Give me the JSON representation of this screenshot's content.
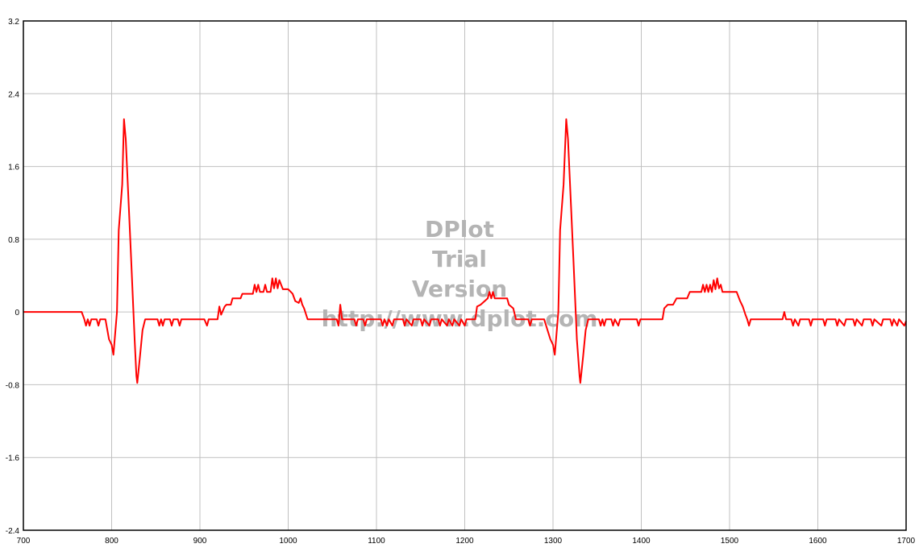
{
  "chart_data": {
    "type": "line",
    "title": "",
    "xlabel": "",
    "ylabel": "",
    "xlim": [
      700,
      1700
    ],
    "ylim": [
      -2.4,
      3.2
    ],
    "grid": true,
    "x_ticks": [
      "700",
      "800",
      "900",
      "1000",
      "1100",
      "1200",
      "1300",
      "1400",
      "1500",
      "1600",
      "1700"
    ],
    "y_ticks": [
      "3.2",
      "2.4",
      "1.6",
      "0.8",
      "0",
      "-0.8",
      "-1.6",
      "-2.4"
    ],
    "series": [
      {
        "color": "#ff0000",
        "points": [
          [
            700,
            0
          ],
          [
            766,
            0
          ],
          [
            769,
            -0.08
          ],
          [
            771,
            -0.15
          ],
          [
            773,
            -0.08
          ],
          [
            775,
            -0.15
          ],
          [
            777,
            -0.08
          ],
          [
            783,
            -0.08
          ],
          [
            785,
            -0.15
          ],
          [
            787,
            -0.08
          ],
          [
            793,
            -0.08
          ],
          [
            797,
            -0.3
          ],
          [
            800,
            -0.36
          ],
          [
            802,
            -0.47
          ],
          [
            806,
            0
          ],
          [
            808,
            0.9
          ],
          [
            812,
            1.4
          ],
          [
            814,
            2.12
          ],
          [
            816,
            1.9
          ],
          [
            822,
            0.6
          ],
          [
            826,
            -0.3
          ],
          [
            828,
            -0.7
          ],
          [
            829,
            -0.78
          ],
          [
            832,
            -0.5
          ],
          [
            835,
            -0.2
          ],
          [
            838,
            -0.08
          ],
          [
            852,
            -0.08
          ],
          [
            854,
            -0.15
          ],
          [
            856,
            -0.08
          ],
          [
            858,
            -0.15
          ],
          [
            860,
            -0.08
          ],
          [
            866,
            -0.08
          ],
          [
            868,
            -0.15
          ],
          [
            870,
            -0.08
          ],
          [
            875,
            -0.08
          ],
          [
            877,
            -0.15
          ],
          [
            879,
            -0.08
          ],
          [
            905,
            -0.08
          ],
          [
            908,
            -0.15
          ],
          [
            910,
            -0.08
          ],
          [
            920,
            -0.08
          ],
          [
            922,
            0.06
          ],
          [
            924,
            -0.03
          ],
          [
            928,
            0.06
          ],
          [
            930,
            0.08
          ],
          [
            935,
            0.08
          ],
          [
            937,
            0.15
          ],
          [
            946,
            0.15
          ],
          [
            948,
            0.2
          ],
          [
            960,
            0.2
          ],
          [
            962,
            0.3
          ],
          [
            964,
            0.22
          ],
          [
            966,
            0.3
          ],
          [
            968,
            0.22
          ],
          [
            972,
            0.22
          ],
          [
            974,
            0.3
          ],
          [
            976,
            0.22
          ],
          [
            980,
            0.22
          ],
          [
            982,
            0.37
          ],
          [
            984,
            0.26
          ],
          [
            986,
            0.37
          ],
          [
            988,
            0.26
          ],
          [
            990,
            0.35
          ],
          [
            994,
            0.25
          ],
          [
            1000,
            0.25
          ],
          [
            1005,
            0.2
          ],
          [
            1008,
            0.12
          ],
          [
            1012,
            0.1
          ],
          [
            1014,
            0.15
          ],
          [
            1016,
            0.08
          ],
          [
            1018,
            0.04
          ],
          [
            1022,
            -0.08
          ],
          [
            1055,
            -0.08
          ],
          [
            1057,
            -0.15
          ],
          [
            1059,
            0.08
          ],
          [
            1061,
            -0.08
          ],
          [
            1075,
            -0.08
          ],
          [
            1077,
            -0.15
          ],
          [
            1079,
            -0.08
          ],
          [
            1085,
            -0.08
          ],
          [
            1087,
            -0.15
          ],
          [
            1089,
            -0.08
          ],
          [
            1105,
            -0.08
          ],
          [
            1107,
            -0.15
          ],
          [
            1109,
            -0.08
          ],
          [
            1112,
            -0.15
          ],
          [
            1114,
            -0.08
          ],
          [
            1118,
            -0.15
          ],
          [
            1120,
            -0.08
          ],
          [
            1130,
            -0.08
          ],
          [
            1132,
            -0.15
          ],
          [
            1134,
            -0.08
          ],
          [
            1140,
            -0.15
          ],
          [
            1142,
            -0.08
          ],
          [
            1150,
            -0.08
          ],
          [
            1152,
            -0.15
          ],
          [
            1154,
            -0.08
          ],
          [
            1160,
            -0.15
          ],
          [
            1162,
            -0.08
          ],
          [
            1170,
            -0.08
          ],
          [
            1172,
            -0.15
          ],
          [
            1174,
            -0.08
          ],
          [
            1180,
            -0.15
          ],
          [
            1182,
            -0.08
          ],
          [
            1186,
            -0.15
          ],
          [
            1188,
            -0.08
          ],
          [
            1194,
            -0.15
          ],
          [
            1196,
            -0.08
          ],
          [
            1200,
            -0.15
          ],
          [
            1202,
            -0.08
          ],
          [
            1212,
            -0.08
          ],
          [
            1214,
            0.06
          ],
          [
            1218,
            0.08
          ],
          [
            1226,
            0.15
          ],
          [
            1228,
            0.22
          ],
          [
            1230,
            0.15
          ],
          [
            1232,
            0.22
          ],
          [
            1234,
            0.15
          ],
          [
            1248,
            0.15
          ],
          [
            1250,
            0.08
          ],
          [
            1255,
            0.04
          ],
          [
            1258,
            -0.08
          ],
          [
            1272,
            -0.08
          ],
          [
            1274,
            -0.15
          ],
          [
            1276,
            -0.08
          ],
          [
            1290,
            -0.08
          ],
          [
            1297,
            -0.3
          ],
          [
            1300,
            -0.36
          ],
          [
            1302,
            -0.47
          ],
          [
            1306,
            0
          ],
          [
            1308,
            0.9
          ],
          [
            1312,
            1.4
          ],
          [
            1315,
            2.12
          ],
          [
            1317,
            1.9
          ],
          [
            1323,
            0.6
          ],
          [
            1327,
            -0.3
          ],
          [
            1330,
            -0.7
          ],
          [
            1331,
            -0.78
          ],
          [
            1334,
            -0.5
          ],
          [
            1337,
            -0.2
          ],
          [
            1340,
            -0.08
          ],
          [
            1352,
            -0.08
          ],
          [
            1354,
            -0.15
          ],
          [
            1356,
            -0.08
          ],
          [
            1358,
            -0.15
          ],
          [
            1360,
            -0.08
          ],
          [
            1366,
            -0.08
          ],
          [
            1368,
            -0.15
          ],
          [
            1370,
            -0.08
          ],
          [
            1374,
            -0.15
          ],
          [
            1376,
            -0.08
          ],
          [
            1395,
            -0.08
          ],
          [
            1397,
            -0.15
          ],
          [
            1399,
            -0.08
          ],
          [
            1424,
            -0.08
          ],
          [
            1426,
            0.04
          ],
          [
            1430,
            0.08
          ],
          [
            1436,
            0.08
          ],
          [
            1440,
            0.15
          ],
          [
            1452,
            0.15
          ],
          [
            1455,
            0.22
          ],
          [
            1468,
            0.22
          ],
          [
            1470,
            0.3
          ],
          [
            1472,
            0.22
          ],
          [
            1474,
            0.3
          ],
          [
            1476,
            0.22
          ],
          [
            1478,
            0.3
          ],
          [
            1480,
            0.22
          ],
          [
            1482,
            0.35
          ],
          [
            1484,
            0.25
          ],
          [
            1486,
            0.37
          ],
          [
            1488,
            0.26
          ],
          [
            1490,
            0.3
          ],
          [
            1492,
            0.22
          ],
          [
            1508,
            0.22
          ],
          [
            1512,
            0.12
          ],
          [
            1515,
            0.06
          ],
          [
            1518,
            -0.03
          ],
          [
            1520,
            -0.08
          ],
          [
            1522,
            -0.15
          ],
          [
            1524,
            -0.08
          ],
          [
            1560,
            -0.08
          ],
          [
            1562,
            0.0
          ],
          [
            1564,
            -0.08
          ],
          [
            1570,
            -0.08
          ],
          [
            1572,
            -0.15
          ],
          [
            1574,
            -0.08
          ],
          [
            1578,
            -0.15
          ],
          [
            1580,
            -0.08
          ],
          [
            1590,
            -0.08
          ],
          [
            1592,
            -0.15
          ],
          [
            1594,
            -0.08
          ],
          [
            1606,
            -0.08
          ],
          [
            1608,
            -0.15
          ],
          [
            1610,
            -0.08
          ],
          [
            1620,
            -0.08
          ],
          [
            1622,
            -0.15
          ],
          [
            1624,
            -0.08
          ],
          [
            1630,
            -0.15
          ],
          [
            1632,
            -0.08
          ],
          [
            1640,
            -0.08
          ],
          [
            1642,
            -0.15
          ],
          [
            1644,
            -0.08
          ],
          [
            1650,
            -0.15
          ],
          [
            1652,
            -0.08
          ],
          [
            1660,
            -0.08
          ],
          [
            1662,
            -0.15
          ],
          [
            1664,
            -0.08
          ],
          [
            1672,
            -0.15
          ],
          [
            1674,
            -0.08
          ],
          [
            1682,
            -0.08
          ],
          [
            1684,
            -0.15
          ],
          [
            1686,
            -0.08
          ],
          [
            1690,
            -0.15
          ],
          [
            1692,
            -0.08
          ],
          [
            1698,
            -0.15
          ],
          [
            1700,
            -0.1
          ]
        ]
      }
    ],
    "watermark": [
      "DPlot",
      "Trial",
      "Version",
      "http://www.dplot.com"
    ],
    "colors": {
      "line": "#ff0000",
      "grid": "#c0c0c0",
      "frame": "#000000",
      "watermark": "#b4b4b4",
      "background": "#ffffff"
    }
  }
}
